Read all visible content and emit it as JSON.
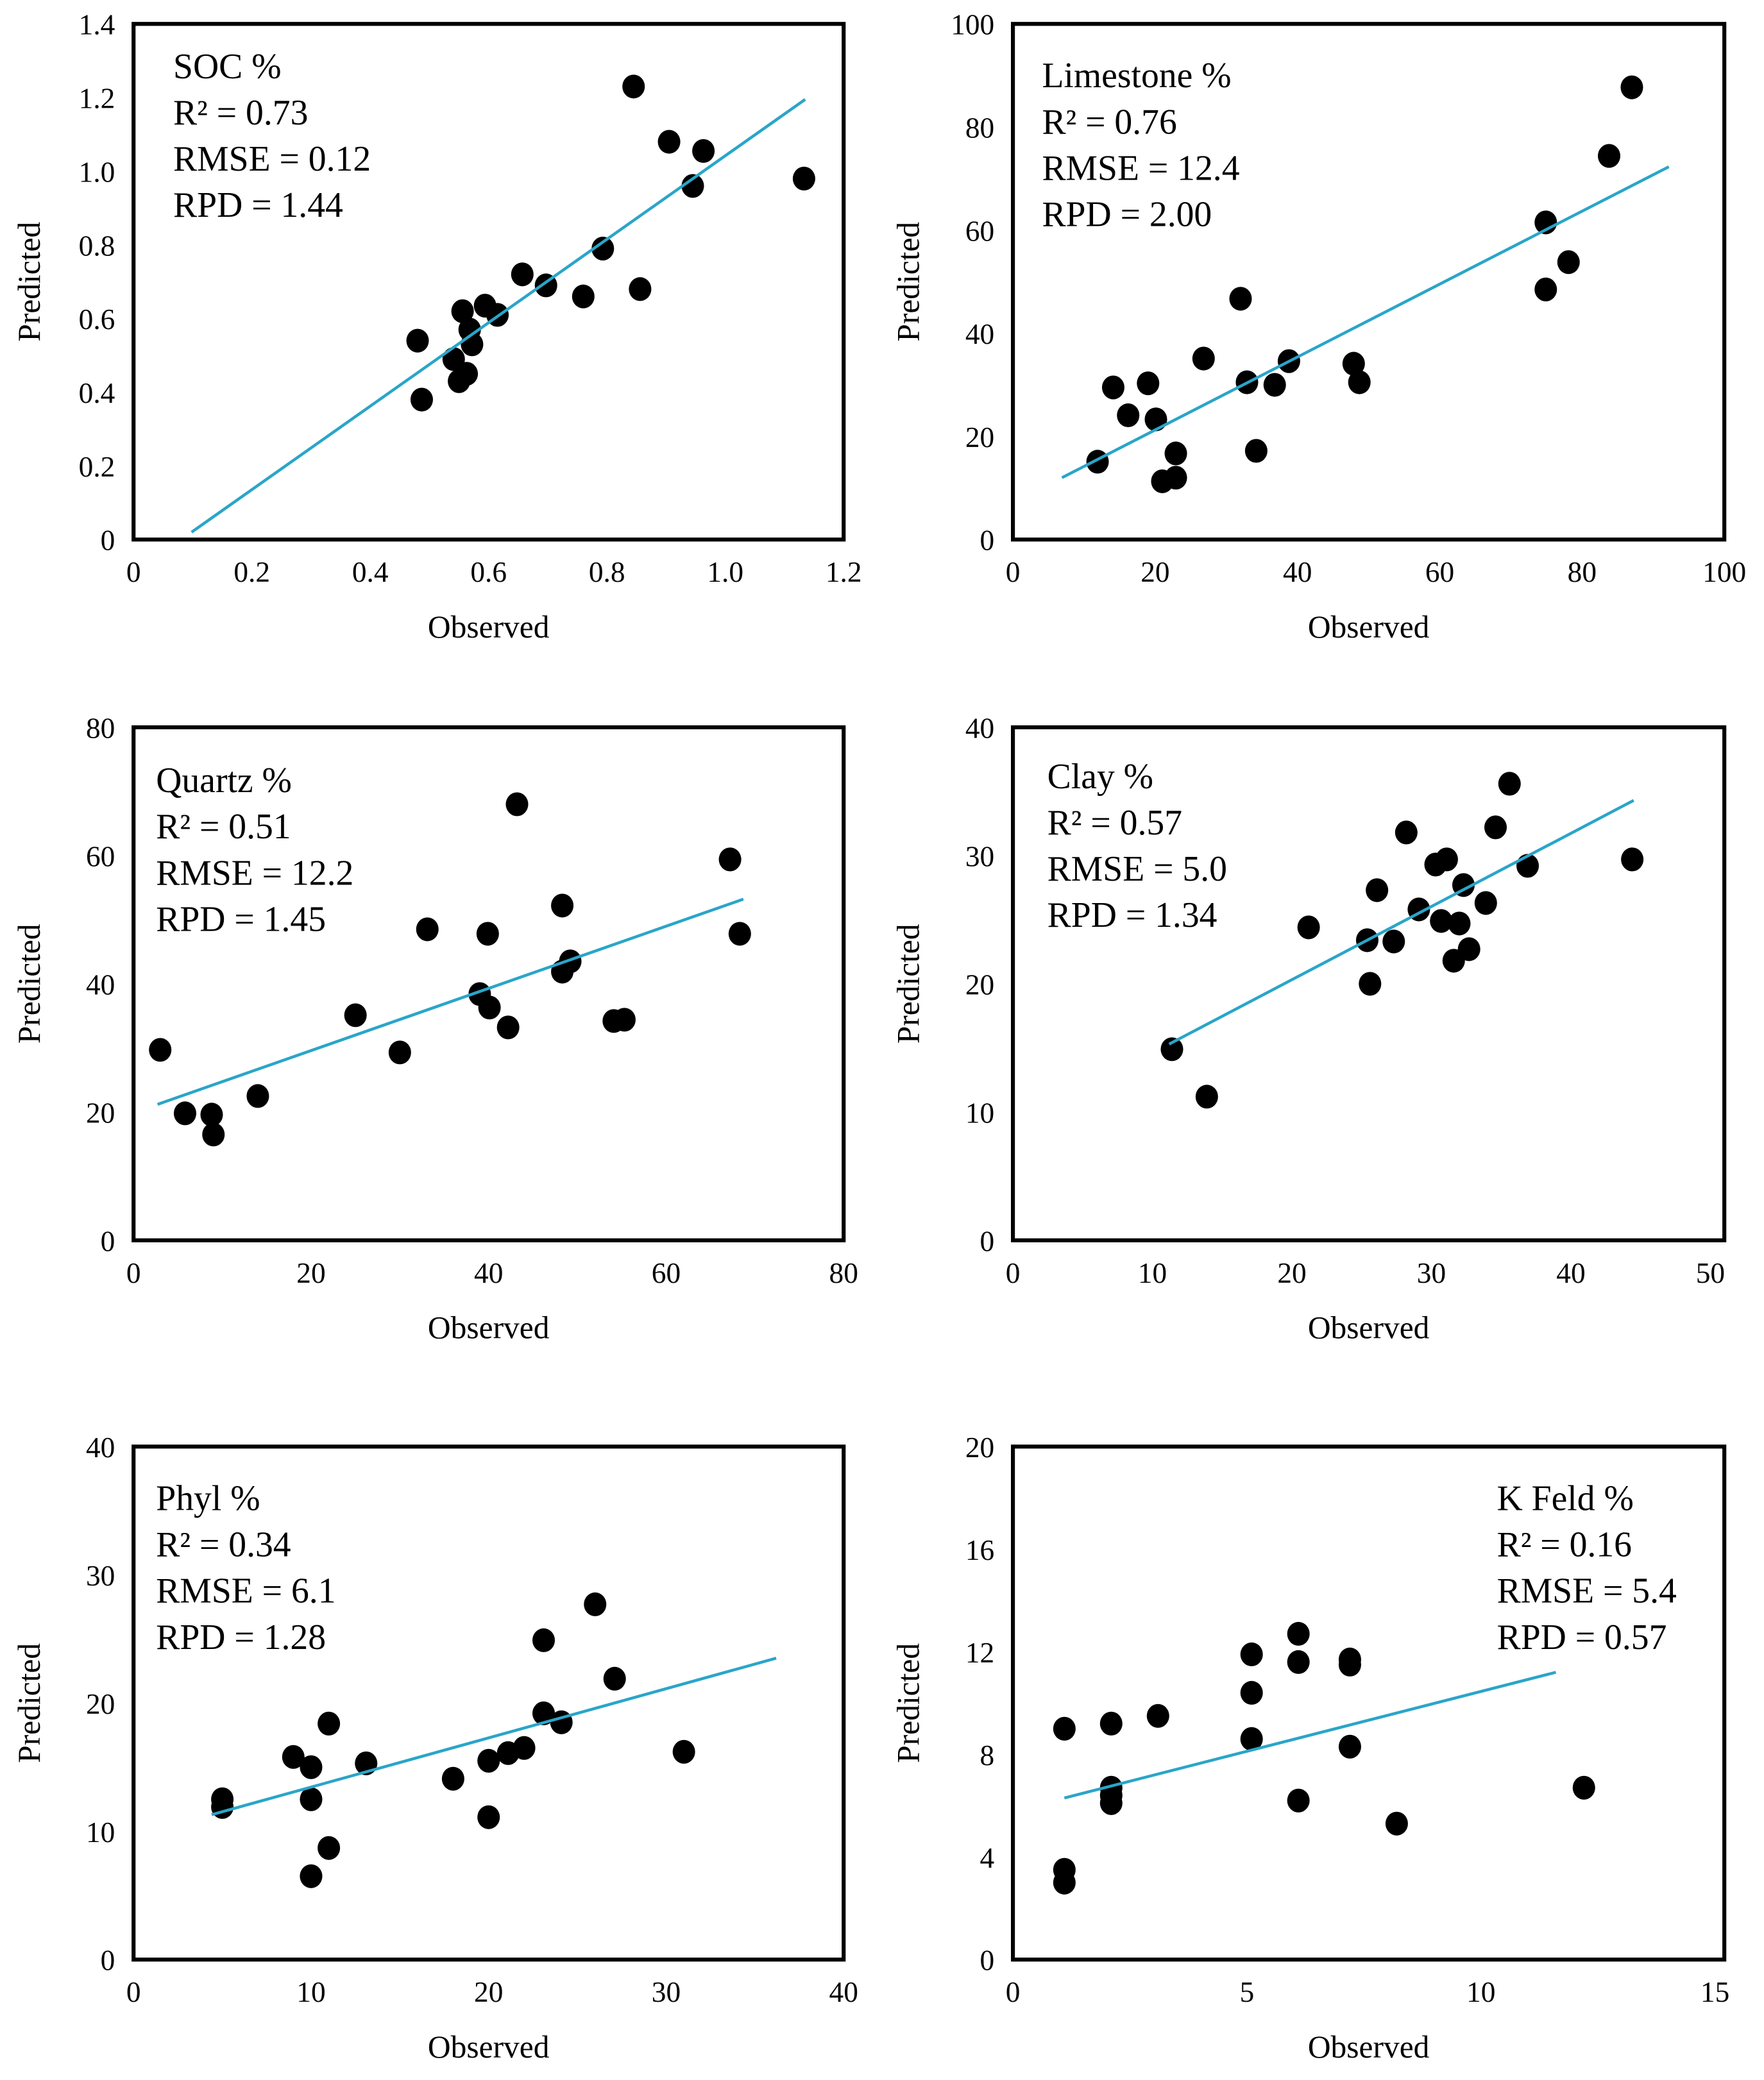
{
  "colors": {
    "fit_line": "#2aa5c9",
    "points": "#000000",
    "frame": "#000000"
  },
  "chart_data": [
    {
      "type": "scatter",
      "title": "SOC %",
      "xlabel": "Observed",
      "ylabel": "Predicted",
      "stats": [
        "R² = 0.73",
        "RMSE = 0.12",
        "RPD = 1.44"
      ],
      "xlim": [
        0,
        1.2
      ],
      "ylim": [
        0,
        1.4
      ],
      "xticks": [
        0,
        0.2,
        0.4,
        0.6,
        0.8,
        1.0,
        1.2
      ],
      "xtick_labels": [
        "0",
        "0.2",
        "0.4",
        "0.6",
        "0.8",
        "1.0",
        "1.2"
      ],
      "yticks": [
        0,
        0.2,
        0.4,
        0.6,
        0.8,
        1.0,
        1.2,
        1.4
      ],
      "ytick_labels": [
        "0",
        "0.2",
        "0.4",
        "0.6",
        "0.8",
        "1.0",
        "1.2",
        "1.4"
      ],
      "stats_position": "top-left",
      "points": [
        [
          0.845,
          1.23
        ],
        [
          0.905,
          1.08
        ],
        [
          0.963,
          1.055
        ],
        [
          0.945,
          0.96
        ],
        [
          1.133,
          0.98
        ],
        [
          0.793,
          0.79
        ],
        [
          0.856,
          0.68
        ],
        [
          0.76,
          0.66
        ],
        [
          0.697,
          0.69
        ],
        [
          0.657,
          0.72
        ],
        [
          0.615,
          0.61
        ],
        [
          0.594,
          0.635
        ],
        [
          0.556,
          0.62
        ],
        [
          0.568,
          0.57
        ],
        [
          0.572,
          0.53
        ],
        [
          0.541,
          0.49
        ],
        [
          0.563,
          0.45
        ],
        [
          0.55,
          0.43
        ],
        [
          0.48,
          0.54
        ],
        [
          0.487,
          0.38
        ]
      ],
      "fit_line": [
        [
          0.098,
          0.02
        ],
        [
          1.135,
          1.195
        ]
      ]
    },
    {
      "type": "scatter",
      "title": "Limestone %",
      "xlabel": "Observed",
      "ylabel": "Predicted",
      "stats": [
        "R² = 0.76",
        "RMSE = 12.4",
        "RPD = 2.00"
      ],
      "xlim": [
        0,
        100
      ],
      "ylim": [
        0,
        100
      ],
      "xticks": [
        0,
        20,
        40,
        60,
        80,
        100
      ],
      "xtick_labels": [
        "0",
        "20",
        "40",
        "60",
        "80",
        "100"
      ],
      "yticks": [
        0,
        20,
        40,
        60,
        80,
        100
      ],
      "ytick_labels": [
        "0",
        "20",
        "40",
        "60",
        "80",
        "100"
      ],
      "stats_position": "top-left",
      "points": [
        [
          87,
          87.7
        ],
        [
          83.8,
          74.4
        ],
        [
          74.9,
          61.5
        ],
        [
          78.1,
          53.8
        ],
        [
          74.9,
          48.5
        ],
        [
          32,
          46.7
        ],
        [
          26.8,
          35.1
        ],
        [
          38.8,
          34.6
        ],
        [
          47.9,
          34.1
        ],
        [
          48.7,
          30.5
        ],
        [
          32.9,
          30.5
        ],
        [
          36.8,
          30
        ],
        [
          19,
          30.3
        ],
        [
          14.1,
          29.5
        ],
        [
          16.2,
          24.1
        ],
        [
          20.1,
          23.3
        ],
        [
          22.9,
          16.7
        ],
        [
          34.2,
          17.2
        ],
        [
          22.9,
          12
        ],
        [
          21,
          11.3
        ],
        [
          11.9,
          15.1
        ]
      ],
      "fit_line": [
        [
          6.9,
          12
        ],
        [
          92.2,
          72.3
        ]
      ]
    },
    {
      "type": "scatter",
      "title": "Quartz %",
      "xlabel": "Observed",
      "ylabel": "Predicted",
      "stats": [
        "R² = 0.51",
        "RMSE = 12.2",
        "RPD = 1.45"
      ],
      "xlim": [
        0,
        80
      ],
      "ylim": [
        0,
        80
      ],
      "xticks": [
        0,
        20,
        40,
        60,
        80
      ],
      "xtick_labels": [
        "0",
        "20",
        "40",
        "60",
        "80"
      ],
      "yticks": [
        0,
        20,
        40,
        60,
        80
      ],
      "ytick_labels": [
        "0",
        "20",
        "40",
        "60",
        "80"
      ],
      "stats_position": "top-left",
      "points": [
        [
          43.2,
          68
        ],
        [
          67.2,
          59.4
        ],
        [
          68.3,
          47.8
        ],
        [
          48.3,
          52.2
        ],
        [
          33.1,
          48.5
        ],
        [
          39.9,
          47.8
        ],
        [
          49.2,
          43.5
        ],
        [
          48.3,
          41.9
        ],
        [
          39,
          38.4
        ],
        [
          40.1,
          36.3
        ],
        [
          42.2,
          33.2
        ],
        [
          54.1,
          34.2
        ],
        [
          55.3,
          34.4
        ],
        [
          25,
          35.1
        ],
        [
          30,
          29.3
        ],
        [
          3,
          29.7
        ],
        [
          14,
          22.5
        ],
        [
          5.8,
          19.8
        ],
        [
          8.8,
          19.6
        ],
        [
          9,
          16.5
        ]
      ],
      "fit_line": [
        [
          2.7,
          21.2
        ],
        [
          68.7,
          53.2
        ]
      ]
    },
    {
      "type": "scatter",
      "title": "Clay %",
      "xlabel": "Observed",
      "ylabel": "Predicted",
      "stats": [
        "R² = 0.57",
        "RMSE = 5.0",
        "RPD = 1.34"
      ],
      "xlim": [
        0,
        51
      ],
      "ylim": [
        0,
        40
      ],
      "xticks": [
        0,
        10,
        20,
        30,
        40,
        50
      ],
      "xtick_labels": [
        "0",
        "10",
        "20",
        "30",
        "40",
        "50"
      ],
      "yticks": [
        0,
        10,
        20,
        30,
        40
      ],
      "ytick_labels": [
        "0",
        "10",
        "20",
        "30",
        "40"
      ],
      "stats_position": "top-left",
      "points": [
        [
          35.6,
          35.6
        ],
        [
          34.6,
          32.2
        ],
        [
          28.2,
          31.8
        ],
        [
          31.1,
          29.7
        ],
        [
          30.3,
          29.3
        ],
        [
          36.9,
          29.2
        ],
        [
          44.4,
          29.7
        ],
        [
          26.1,
          27.3
        ],
        [
          32.3,
          27.7
        ],
        [
          33.9,
          26.3
        ],
        [
          29.1,
          25.8
        ],
        [
          30.7,
          24.9
        ],
        [
          32,
          24.7
        ],
        [
          21.2,
          24.4
        ],
        [
          25.4,
          23.4
        ],
        [
          27.3,
          23.3
        ],
        [
          32.7,
          22.7
        ],
        [
          31.6,
          21.8
        ],
        [
          25.6,
          20
        ],
        [
          11.4,
          14.9
        ],
        [
          13.9,
          11.2
        ]
      ],
      "fit_line": [
        [
          11.2,
          15.3
        ],
        [
          44.5,
          34.3
        ]
      ]
    },
    {
      "type": "scatter",
      "title": "Phyl %",
      "xlabel": "Observed",
      "ylabel": "Predicted",
      "stats": [
        "R² = 0.34",
        "RMSE = 6.1",
        "RPD = 1.28"
      ],
      "xlim": [
        0,
        40
      ],
      "ylim": [
        0,
        40
      ],
      "xticks": [
        0,
        10,
        20,
        30,
        40
      ],
      "xtick_labels": [
        "0",
        "10",
        "20",
        "30",
        "40"
      ],
      "yticks": [
        0,
        10,
        20,
        30,
        40
      ],
      "ytick_labels": [
        "0",
        "10",
        "20",
        "30",
        "40"
      ],
      "stats_position": "top-left",
      "points": [
        [
          26,
          27.7
        ],
        [
          23.1,
          24.9
        ],
        [
          27.1,
          21.9
        ],
        [
          23.1,
          19.2
        ],
        [
          24.1,
          18.5
        ],
        [
          11,
          18.4
        ],
        [
          31,
          16.2
        ],
        [
          22,
          16.5
        ],
        [
          21.1,
          16.1
        ],
        [
          20,
          15.5
        ],
        [
          13.1,
          15.3
        ],
        [
          9,
          15.8
        ],
        [
          10,
          15
        ],
        [
          18,
          14.1
        ],
        [
          10,
          12.5
        ],
        [
          5,
          12.5
        ],
        [
          5,
          11.9
        ],
        [
          20,
          11.1
        ],
        [
          11,
          8.7
        ],
        [
          10,
          6.5
        ]
      ],
      "fit_line": [
        [
          4.4,
          11.3
        ],
        [
          36.2,
          23.5
        ]
      ]
    },
    {
      "type": "scatter",
      "title": "K Feld %",
      "xlabel": "Observed",
      "ylabel": "Predicted",
      "stats": [
        "R² = 0.16",
        "RMSE = 5.4",
        "RPD = 0.57"
      ],
      "xlim": [
        0,
        15.2
      ],
      "ylim": [
        0,
        20
      ],
      "xticks": [
        0,
        5,
        10,
        15
      ],
      "xtick_labels": [
        "0",
        "5",
        "10",
        "15"
      ],
      "yticks": [
        0,
        4,
        8,
        12,
        16,
        20
      ],
      "ytick_labels": [
        "0",
        "4",
        "8",
        "12",
        "16",
        "20"
      ],
      "stats_position": "top-right",
      "points": [
        [
          6.1,
          12.7
        ],
        [
          5.1,
          11.9
        ],
        [
          6.1,
          11.6
        ],
        [
          7.2,
          11.7
        ],
        [
          7.2,
          11.5
        ],
        [
          5.1,
          10.4
        ],
        [
          3.1,
          9.5
        ],
        [
          2.1,
          9.2
        ],
        [
          1.1,
          9
        ],
        [
          5.1,
          8.6
        ],
        [
          7.2,
          8.3
        ],
        [
          2.1,
          6.7
        ],
        [
          12.2,
          6.7
        ],
        [
          2.1,
          6.4
        ],
        [
          2.1,
          6.1
        ],
        [
          6.1,
          6.2
        ],
        [
          8.2,
          5.3
        ],
        [
          1.1,
          3.5
        ],
        [
          1.1,
          3
        ]
      ],
      "fit_line": [
        [
          1.1,
          6.3
        ],
        [
          11.6,
          11.2
        ]
      ]
    }
  ]
}
